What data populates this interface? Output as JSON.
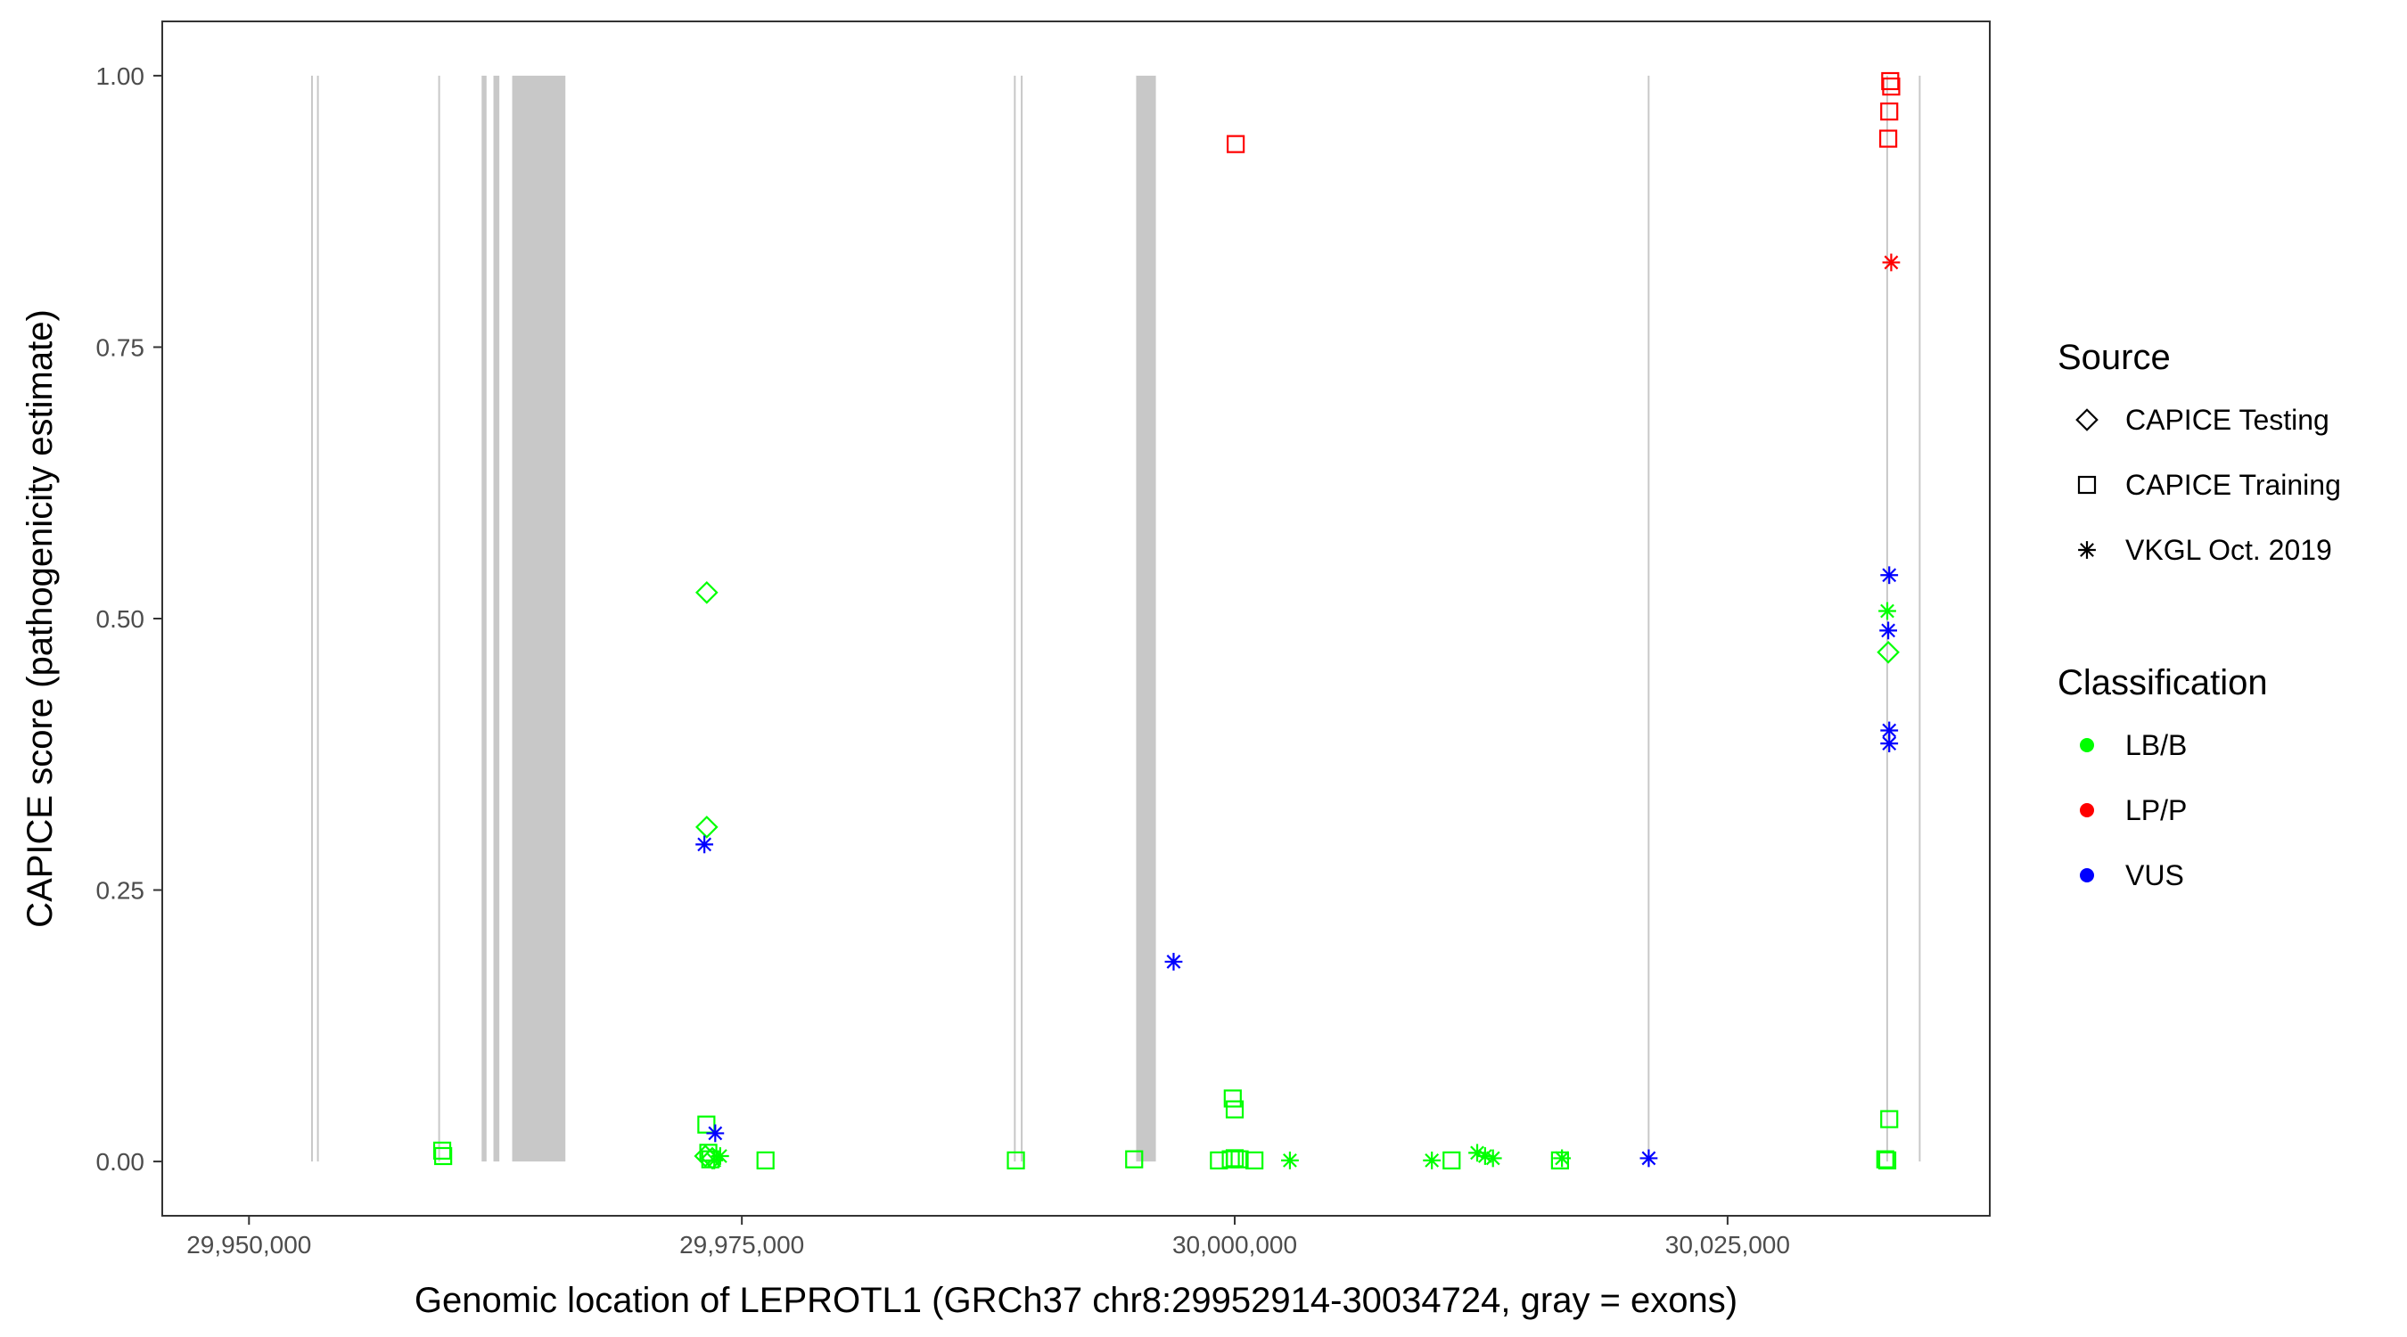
{
  "chart_data": {
    "type": "scatter",
    "xlabel": "Genomic location of LEPROTL1 (GRCh37 chr8:29952914-30034724, gray = exons)",
    "ylabel": "CAPICE score (pathogenicity estimate)",
    "xlim": [
      29945600,
      30038300
    ],
    "ylim": [
      -0.05,
      1.05
    ],
    "x_ticks": [
      29950000,
      29975000,
      30000000,
      30025000
    ],
    "x_tick_labels": [
      "29,950,000",
      "29,975,000",
      "30,000,000",
      "30,025,000"
    ],
    "y_ticks": [
      0,
      0.25,
      0.5,
      0.75,
      1
    ],
    "y_tick_labels": [
      "0.00",
      "0.25",
      "0.50",
      "0.75",
      "1.00"
    ],
    "grid": false,
    "exons": [
      [
        29953150,
        29953200
      ],
      [
        29953450,
        29953500
      ],
      [
        29959600,
        29959650
      ],
      [
        29961800,
        29962050
      ],
      [
        29962400,
        29962700
      ],
      [
        29963350,
        29966050
      ],
      [
        29988800,
        29988850
      ],
      [
        29989150,
        29989200
      ],
      [
        29995000,
        29996000
      ],
      [
        30020950,
        30021000
      ],
      [
        30033050,
        30033100
      ],
      [
        30034700,
        30034750
      ]
    ],
    "legend": {
      "position": "right",
      "source_title": "Source",
      "source_items": [
        {
          "label": "CAPICE Testing",
          "shape": "diamond"
        },
        {
          "label": "CAPICE Training",
          "shape": "square"
        },
        {
          "label": "VKGL Oct. 2019",
          "shape": "asterisk"
        }
      ],
      "class_title": "Classification",
      "class_items": [
        {
          "label": "LB/B",
          "color": "#00ff00"
        },
        {
          "label": "LP/P",
          "color": "#ff0000"
        },
        {
          "label": "VUS",
          "color": "#0000ff"
        }
      ]
    },
    "colors": {
      "LB/B": "#00ff00",
      "LP/P": "#ff0000",
      "VUS": "#0000ff"
    },
    "series": [
      {
        "name": "CAPICE Testing",
        "shape": "diamond",
        "points": [
          {
            "x": 29973220,
            "y": 0.524,
            "c": "LB/B"
          },
          {
            "x": 29973220,
            "y": 0.308,
            "c": "LB/B"
          },
          {
            "x": 29973150,
            "y": 0.005,
            "c": "LB/B"
          },
          {
            "x": 29973500,
            "y": 0.003,
            "c": "LB/B"
          },
          {
            "x": 30033150,
            "y": 0.469,
            "c": "LB/B"
          }
        ]
      },
      {
        "name": "CAPICE Training",
        "shape": "square",
        "points": [
          {
            "x": 29959800,
            "y": 0.01,
            "c": "LB/B"
          },
          {
            "x": 29959850,
            "y": 0.005,
            "c": "LB/B"
          },
          {
            "x": 29973200,
            "y": 0.034,
            "c": "LB/B"
          },
          {
            "x": 29973300,
            "y": 0.008,
            "c": "LB/B"
          },
          {
            "x": 29973400,
            "y": 0.002,
            "c": "LB/B"
          },
          {
            "x": 29976200,
            "y": 0.001,
            "c": "LB/B"
          },
          {
            "x": 29988900,
            "y": 0.001,
            "c": "LB/B"
          },
          {
            "x": 29994900,
            "y": 0.002,
            "c": "LB/B"
          },
          {
            "x": 29999200,
            "y": 0.001,
            "c": "LB/B"
          },
          {
            "x": 29999800,
            "y": 0.002,
            "c": "LB/B"
          },
          {
            "x": 30000000,
            "y": 0.003,
            "c": "LB/B"
          },
          {
            "x": 30000250,
            "y": 0.002,
            "c": "LB/B"
          },
          {
            "x": 30001000,
            "y": 0.001,
            "c": "LB/B"
          },
          {
            "x": 29999900,
            "y": 0.058,
            "c": "LB/B"
          },
          {
            "x": 30000000,
            "y": 0.048,
            "c": "LB/B"
          },
          {
            "x": 30011000,
            "y": 0.001,
            "c": "LB/B"
          },
          {
            "x": 30016500,
            "y": 0.001,
            "c": "LB/B"
          },
          {
            "x": 30033000,
            "y": 0.002,
            "c": "LB/B"
          },
          {
            "x": 30033100,
            "y": 0.001,
            "c": "LB/B"
          },
          {
            "x": 30033200,
            "y": 0.039,
            "c": "LB/B"
          },
          {
            "x": 30000050,
            "y": 0.937,
            "c": "LP/P"
          },
          {
            "x": 30033250,
            "y": 0.995,
            "c": "LP/P"
          },
          {
            "x": 30033300,
            "y": 0.99,
            "c": "LP/P"
          },
          {
            "x": 30033200,
            "y": 0.967,
            "c": "LP/P"
          },
          {
            "x": 30033150,
            "y": 0.942,
            "c": "LP/P"
          }
        ]
      },
      {
        "name": "VKGL Oct. 2019",
        "shape": "asterisk",
        "points": [
          {
            "x": 29973100,
            "y": 0.292,
            "c": "VUS"
          },
          {
            "x": 29973650,
            "y": 0.026,
            "c": "VUS"
          },
          {
            "x": 29996900,
            "y": 0.184,
            "c": "VUS"
          },
          {
            "x": 30021000,
            "y": 0.003,
            "c": "VUS"
          },
          {
            "x": 30033200,
            "y": 0.54,
            "c": "VUS"
          },
          {
            "x": 30033150,
            "y": 0.489,
            "c": "VUS"
          },
          {
            "x": 30033200,
            "y": 0.397,
            "c": "VUS"
          },
          {
            "x": 30033200,
            "y": 0.385,
            "c": "VUS"
          },
          {
            "x": 29973600,
            "y": 0.001,
            "c": "LB/B"
          },
          {
            "x": 29973900,
            "y": 0.005,
            "c": "LB/B"
          },
          {
            "x": 30002800,
            "y": 0.001,
            "c": "LB/B"
          },
          {
            "x": 30010000,
            "y": 0.001,
            "c": "LB/B"
          },
          {
            "x": 30012300,
            "y": 0.008,
            "c": "LB/B"
          },
          {
            "x": 30012700,
            "y": 0.005,
            "c": "LB/B"
          },
          {
            "x": 30013100,
            "y": 0.003,
            "c": "LB/B"
          },
          {
            "x": 30016600,
            "y": 0.003,
            "c": "LB/B"
          },
          {
            "x": 30033100,
            "y": 0.507,
            "c": "LB/B"
          },
          {
            "x": 30033300,
            "y": 0.828,
            "c": "LP/P"
          }
        ]
      }
    ]
  }
}
